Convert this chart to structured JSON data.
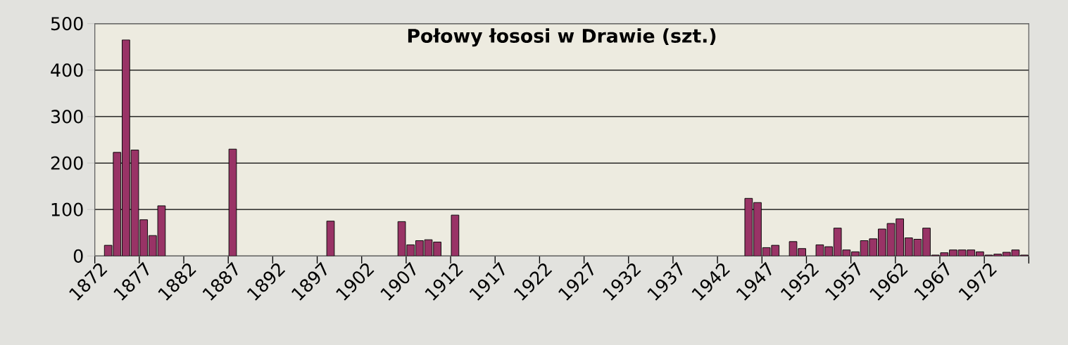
{
  "chart_data": {
    "type": "bar",
    "title": "Połowy łososi w Drawie (szt.)",
    "categories": [
      "1872",
      null,
      null,
      null,
      null,
      "1877",
      null,
      null,
      null,
      null,
      "1882",
      null,
      null,
      null,
      null,
      "1887",
      null,
      null,
      null,
      null,
      "1892",
      null,
      null,
      null,
      null,
      "1897",
      null,
      null,
      null,
      null,
      "1902",
      null,
      null,
      null,
      null,
      "1907",
      null,
      null,
      null,
      null,
      "1912",
      null,
      null,
      null,
      null,
      "1917",
      null,
      null,
      null,
      null,
      "1922",
      null,
      null,
      null,
      null,
      "1927",
      null,
      null,
      null,
      null,
      "1932",
      null,
      null,
      null,
      null,
      "1937",
      null,
      null,
      null,
      null,
      "1942",
      null,
      null,
      null,
      null,
      "1947",
      null,
      null,
      null,
      null,
      "1952",
      null,
      null,
      null,
      null,
      "1957",
      null,
      null,
      null,
      null,
      "1962",
      null,
      null,
      null,
      null,
      "1967",
      null,
      null,
      null,
      null,
      "1972",
      null,
      null,
      null,
      null
    ],
    "values": [
      null,
      23,
      223,
      465,
      228,
      78,
      44,
      108,
      null,
      null,
      null,
      null,
      null,
      null,
      null,
      230,
      null,
      null,
      null,
      null,
      null,
      null,
      null,
      null,
      null,
      null,
      75,
      null,
      null,
      null,
      null,
      null,
      null,
      null,
      74,
      24,
      33,
      35,
      30,
      null,
      88,
      null,
      null,
      null,
      null,
      null,
      null,
      null,
      null,
      null,
      null,
      null,
      null,
      null,
      null,
      null,
      null,
      null,
      null,
      null,
      null,
      null,
      null,
      null,
      null,
      null,
      null,
      null,
      null,
      null,
      null,
      null,
      null,
      124,
      115,
      18,
      23,
      null,
      31,
      16,
      null,
      24,
      20,
      60,
      13,
      9,
      33,
      37,
      58,
      70,
      80,
      39,
      36,
      60,
      2,
      7,
      13,
      13,
      13,
      9,
      2,
      4,
      8,
      13,
      2
    ],
    "color": "#993366",
    "ylim": [
      0,
      500
    ],
    "yticks": [
      0,
      100,
      200,
      300,
      400,
      500
    ],
    "grid": "y"
  }
}
